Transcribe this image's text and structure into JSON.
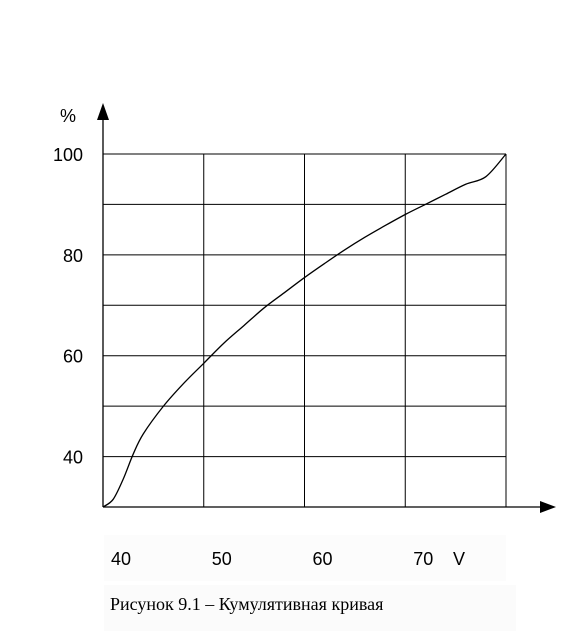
{
  "chart_data": {
    "type": "line",
    "ylabel": "%",
    "xlabel": "V",
    "xlim": [
      40,
      80
    ],
    "ylim": [
      30,
      100
    ],
    "x_ticks_labeled": [
      "40",
      "50",
      "60",
      "70"
    ],
    "y_ticks_labeled": [
      "40",
      "60",
      "80",
      "100"
    ],
    "x_grid": [
      50,
      60,
      70,
      80
    ],
    "y_grid": [
      40,
      50,
      60,
      70,
      80,
      90,
      100
    ],
    "grid": true,
    "series": [
      {
        "x": [
          40,
          41,
          42,
          43,
          44,
          46,
          48,
          50,
          52,
          54,
          56,
          58,
          60,
          62,
          64,
          66,
          68,
          70,
          72,
          74,
          76,
          78,
          80
        ],
        "y": [
          30,
          31.5,
          35.5,
          40.5,
          44.5,
          50,
          54.5,
          58.5,
          62.5,
          66,
          69.5,
          72.5,
          75.5,
          78.3,
          81,
          83.5,
          85.8,
          88,
          90,
          92,
          94,
          95.5,
          100
        ]
      }
    ]
  },
  "caption": "Рисунок 9.1 – Кумулятивная кривая"
}
